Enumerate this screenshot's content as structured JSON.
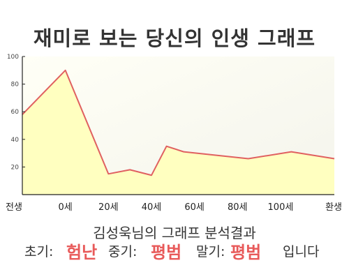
{
  "page": {
    "title": "재미로 보는 당신의 인생 그래프",
    "result_title": "김성욱님의 그래프 분석결과",
    "summary": {
      "early_label": "초기:",
      "early_value": "험난",
      "mid_label": "중기:",
      "mid_value": "평범",
      "late_label": "말기:",
      "late_value": "평범",
      "suffix": "입니다"
    }
  },
  "colors": {
    "line": "#e06060",
    "fill": "#ffffc0",
    "highlight": "#e85a5a",
    "axis": "#222222"
  },
  "chart_data": {
    "type": "area",
    "title": "재미로 보는 당신의 인생 그래프",
    "xlabel": "",
    "ylabel": "",
    "x_ticks": [
      "전생",
      "0세",
      "20세",
      "40세",
      "60세",
      "80세",
      "100세",
      "환생"
    ],
    "y_ticks": [
      "20",
      "40",
      "60",
      "80",
      "100"
    ],
    "ylim": [
      0,
      100
    ],
    "grid": false,
    "series": [
      {
        "x": [
          -20,
          0,
          20,
          30,
          40,
          47,
          55,
          85,
          105,
          125
        ],
        "values": [
          58,
          90,
          15,
          18,
          14,
          35,
          31,
          26,
          31,
          26
        ]
      }
    ]
  }
}
